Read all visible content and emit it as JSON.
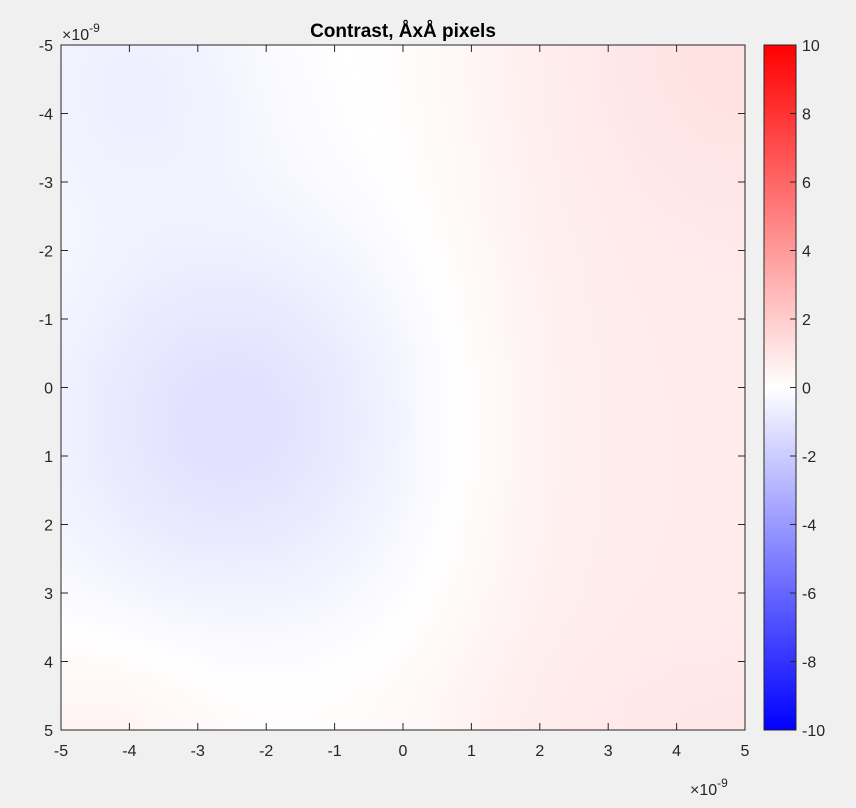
{
  "chart_data": {
    "type": "heatmap",
    "title": "Contrast, ÅxÅ pixels",
    "x_exponent_label": "×10",
    "x_exponent_power": "-9",
    "y_exponent_label": "×10",
    "y_exponent_power": "-9",
    "xlim": [
      -5,
      5
    ],
    "ylim": [
      -5,
      5
    ],
    "y_direction": "reversed",
    "x_ticks": [
      -5,
      -4,
      -3,
      -2,
      -1,
      0,
      1,
      2,
      3,
      4,
      5
    ],
    "y_ticks": [
      -5,
      -4,
      -3,
      -2,
      -1,
      0,
      1,
      2,
      3,
      4,
      5
    ],
    "colorbar": {
      "clim": [
        -10,
        10
      ],
      "ticks": [
        -10,
        -8,
        -6,
        -4,
        -2,
        0,
        2,
        4,
        6,
        8,
        10
      ],
      "colormap": "blue-white-red",
      "low_color": "#0000ff",
      "mid_color": "#ffffff",
      "high_color": "#ff0000"
    },
    "field_description_values": {
      "blue_minimum": {
        "x": -2.5,
        "y": 0.5,
        "value": -1.2
      },
      "red_maximum": {
        "x": 5,
        "y": -5,
        "value": 1.1
      }
    }
  },
  "colors": {
    "figure_background": "#f0f0f0",
    "axis_color": "#262626"
  }
}
